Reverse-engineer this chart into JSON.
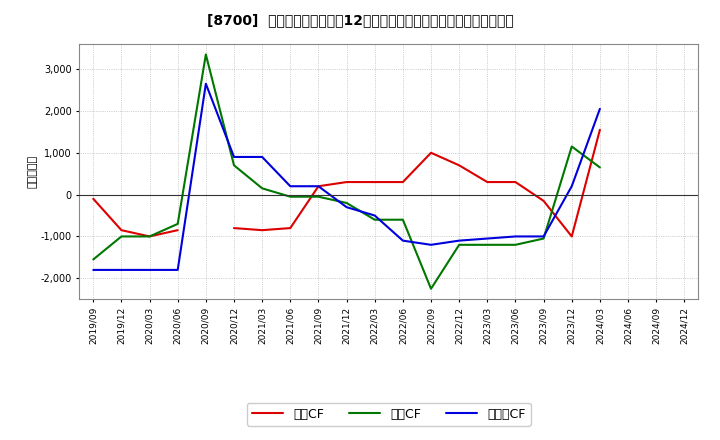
{
  "title": "[8700]  キャッシュフローの12か月移動合計の対前年同期増減額の推移",
  "ylabel": "（百万円）",
  "background_color": "#ffffff",
  "plot_bg_color": "#ffffff",
  "grid_color": "#aaaaaa",
  "x_labels": [
    "2019/09",
    "2019/12",
    "2020/03",
    "2020/06",
    "2020/09",
    "2020/12",
    "2021/03",
    "2021/06",
    "2021/09",
    "2021/12",
    "2022/03",
    "2022/06",
    "2022/09",
    "2022/12",
    "2023/03",
    "2023/06",
    "2023/09",
    "2023/12",
    "2024/03",
    "2024/06",
    "2024/09",
    "2024/12"
  ],
  "eigyo_cf": [
    -100,
    -850,
    -1000,
    -850,
    null,
    -800,
    -850,
    -800,
    200,
    300,
    300,
    300,
    1000,
    700,
    300,
    300,
    -150,
    -1000,
    1550,
    null,
    null,
    null
  ],
  "toshi_cf": [
    -1550,
    -1000,
    -1000,
    -700,
    3350,
    700,
    150,
    -50,
    -50,
    -200,
    -600,
    -600,
    -2250,
    -1200,
    -1200,
    -1200,
    -1050,
    1150,
    650,
    null,
    null,
    null
  ],
  "free_cf": [
    -1800,
    -1800,
    -1800,
    -1800,
    2650,
    900,
    900,
    200,
    200,
    -300,
    -500,
    -1100,
    -1200,
    -1100,
    -1050,
    -1000,
    -1000,
    200,
    2050,
    null,
    null,
    null
  ],
  "eigyo_color": "#dd0000",
  "toshi_color": "#007700",
  "free_color": "#0000dd",
  "ylim": [
    -2500,
    3600
  ],
  "yticks": [
    -2000,
    -1000,
    0,
    1000,
    2000,
    3000
  ],
  "legend_labels": [
    "営業CF",
    "投資CF",
    "フリーCF"
  ]
}
